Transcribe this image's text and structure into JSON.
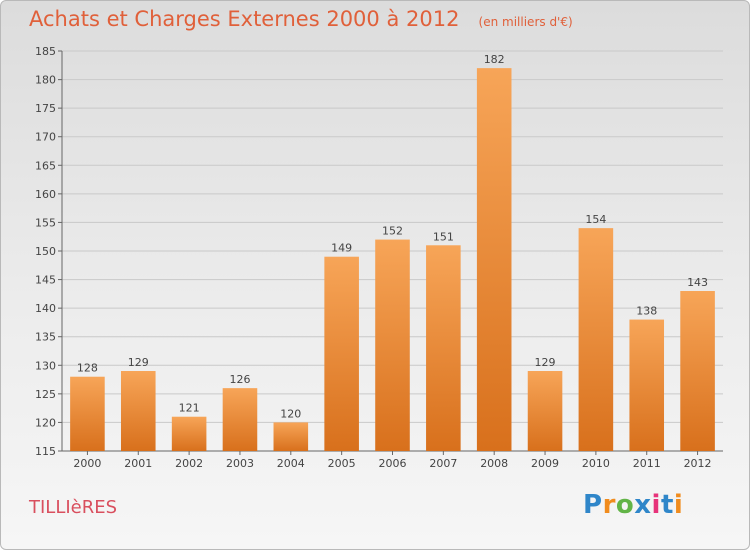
{
  "header": {
    "title": "Achats et Charges Externes 2000 à 2012",
    "subtitle": "(en milliers d'€)"
  },
  "footer": {
    "commune": "TILLIèRES",
    "logo_letters": [
      "P",
      "r",
      "o",
      "x",
      "i",
      "t",
      "i"
    ],
    "logo_colors": [
      "#2f86c9",
      "#f08c1e",
      "#62b447",
      "#2f86c9",
      "#e7337a",
      "#2f86c9",
      "#f08c1e"
    ]
  },
  "chart_data": {
    "type": "bar",
    "title": "Achats et Charges Externes 2000 à 2012",
    "subtitle": "(en milliers d'€)",
    "categories": [
      "2000",
      "2001",
      "2002",
      "2003",
      "2004",
      "2005",
      "2006",
      "2007",
      "2008",
      "2009",
      "2010",
      "2011",
      "2012"
    ],
    "values": [
      128,
      129,
      121,
      126,
      120,
      149,
      152,
      151,
      182,
      129,
      154,
      138,
      143
    ],
    "ylim": [
      115,
      185
    ],
    "yticks": [
      115,
      120,
      125,
      130,
      135,
      140,
      145,
      150,
      155,
      160,
      165,
      170,
      175,
      180,
      185
    ],
    "grid": true,
    "bar_color": "#f08a2c"
  }
}
